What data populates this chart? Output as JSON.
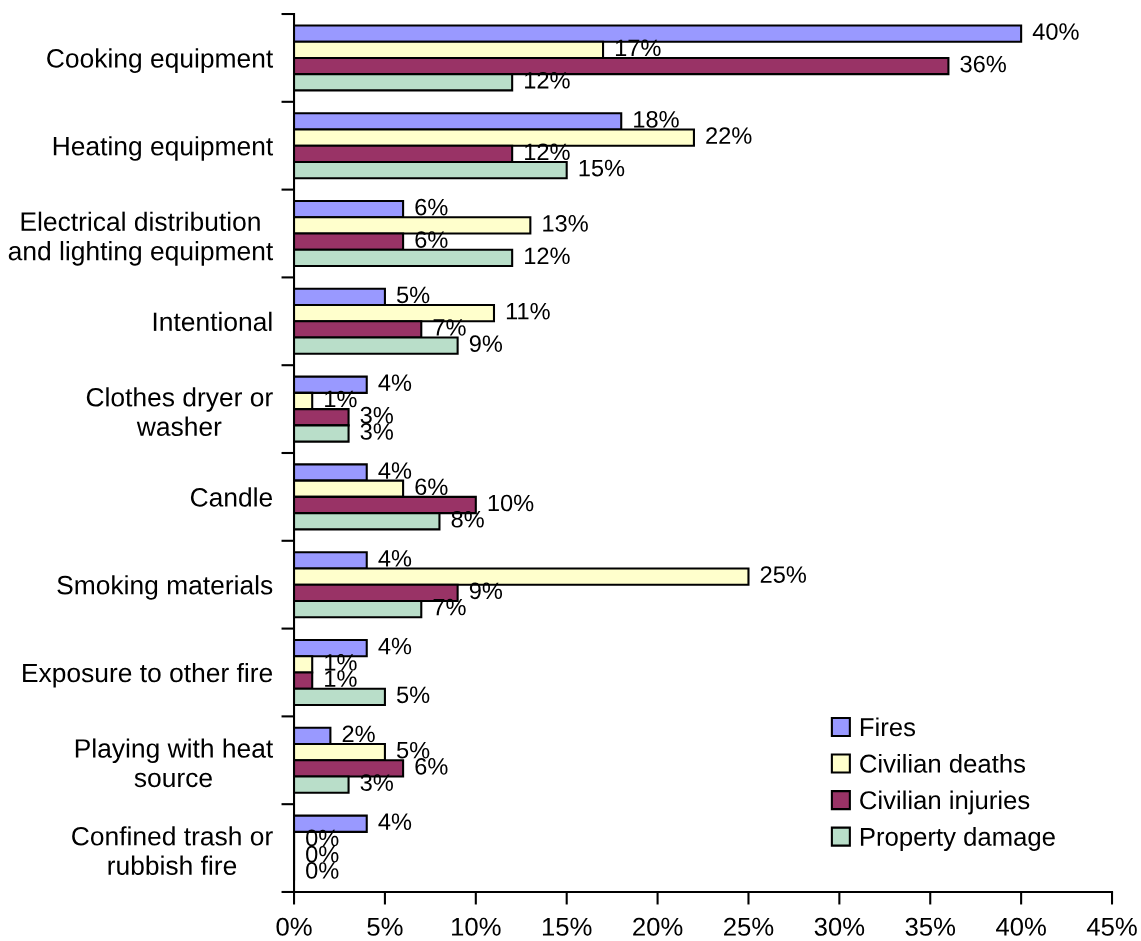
{
  "chart_data": {
    "type": "bar",
    "orientation": "horizontal",
    "categories": [
      "Cooking equipment",
      "Heating equipment",
      "Electrical distribution\nand lighting equipment",
      "Intentional",
      "Clothes dryer or\nwasher",
      "Candle",
      "Smoking materials",
      "Exposure to other fire",
      "Playing with heat\nsource",
      "Confined trash or\nrubbish fire"
    ],
    "series": [
      {
        "name": "Fires",
        "color": "#9999ff",
        "values": [
          40,
          18,
          6,
          5,
          4,
          4,
          4,
          4,
          2,
          4
        ],
        "value_labels": [
          "40%",
          "18%",
          "6%",
          "5%",
          "4%",
          "4%",
          "4%",
          "4%",
          "2%",
          "4%"
        ]
      },
      {
        "name": "Civilian deaths",
        "color": "#ffffcc",
        "values": [
          17,
          22,
          13,
          11,
          1,
          6,
          25,
          1,
          5,
          0
        ],
        "value_labels": [
          "17%",
          "22%",
          "13%",
          "11%",
          "1%",
          "6%",
          "25%",
          "1%",
          "5%",
          "0%"
        ]
      },
      {
        "name": "Civilian injuries",
        "color": "#993366",
        "values": [
          36,
          12,
          6,
          7,
          3,
          10,
          9,
          1,
          6,
          0
        ],
        "value_labels": [
          "36%",
          "12%",
          "6%",
          "7%",
          "3%",
          "10%",
          "9%",
          "1%",
          "6%",
          "0%"
        ]
      },
      {
        "name": "Property damage",
        "color": "#b9dec9",
        "values": [
          12,
          15,
          12,
          9,
          3,
          8,
          7,
          5,
          3,
          0
        ],
        "value_labels": [
          "12%",
          "15%",
          "12%",
          "9%",
          "3%",
          "8%",
          "7%",
          "5%",
          "3%",
          "0%"
        ]
      }
    ],
    "xlim": [
      0,
      45
    ],
    "xticks": [
      {
        "value": 0,
        "label": "0%"
      },
      {
        "value": 5,
        "label": "5%"
      },
      {
        "value": 10,
        "label": "10%"
      },
      {
        "value": 15,
        "label": "15%"
      },
      {
        "value": 20,
        "label": "20%"
      },
      {
        "value": 25,
        "label": "25%"
      },
      {
        "value": 30,
        "label": "30%"
      },
      {
        "value": 35,
        "label": "35%"
      },
      {
        "value": 40,
        "label": "40%"
      },
      {
        "value": 45,
        "label": "45%"
      }
    ],
    "legend": "bottom right",
    "grid": false
  }
}
